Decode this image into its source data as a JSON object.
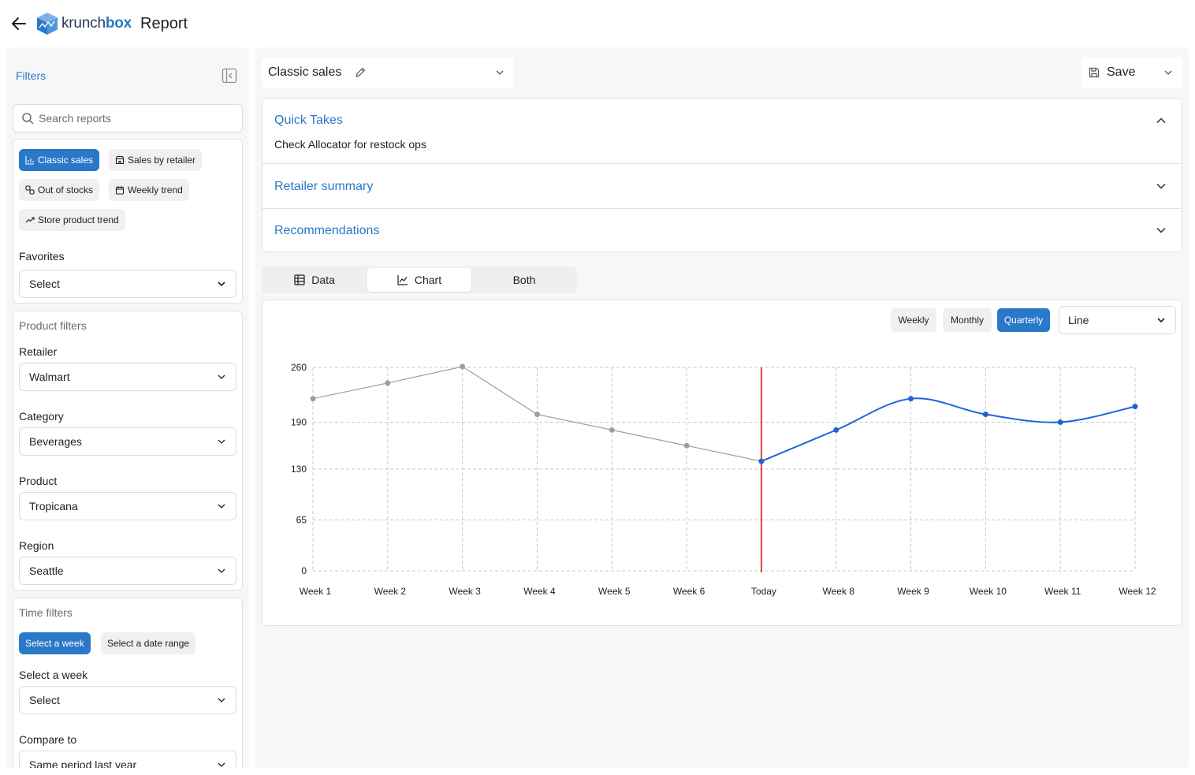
{
  "header": {
    "logo_prefix": "krunch",
    "logo_suffix": "box",
    "page_title": "Report"
  },
  "sidebar": {
    "title": "Filters",
    "search_placeholder": "Search reports",
    "reports": [
      {
        "label": "Classic sales",
        "icon": "bar-chart-icon",
        "active": true
      },
      {
        "label": "Sales by retailer",
        "icon": "store-icon",
        "active": false
      },
      {
        "label": "Out of stocks",
        "icon": "link-icon",
        "active": false
      },
      {
        "label": "Weekly trend",
        "icon": "calendar-icon",
        "active": false
      },
      {
        "label": "Store product trend",
        "icon": "trend-icon",
        "active": false
      }
    ],
    "favorites": {
      "label": "Favorites",
      "value": "Select"
    },
    "product_filters": {
      "title": "Product filters",
      "retailer": {
        "label": "Retailer",
        "value": "Walmart"
      },
      "category": {
        "label": "Category",
        "value": "Beverages"
      },
      "product": {
        "label": "Product",
        "value": "Tropicana"
      },
      "region": {
        "label": "Region",
        "value": "Seattle"
      }
    },
    "time_filters": {
      "title": "Time filters",
      "modes": [
        {
          "label": "Select a week",
          "active": true
        },
        {
          "label": "Select a date range",
          "active": false
        }
      ],
      "week": {
        "label": "Select a week",
        "value": "Select"
      },
      "compare": {
        "label": "Compare to",
        "value": "Same period last year"
      }
    }
  },
  "main": {
    "report_name": "Classic sales",
    "save_label": "Save",
    "sections": [
      {
        "title": "Quick Takes",
        "body": "Check Allocator for restock ops",
        "expanded": true
      },
      {
        "title": "Retailer summary",
        "expanded": false
      },
      {
        "title": "Recommendations",
        "expanded": false
      }
    ],
    "view_tabs": [
      {
        "label": "Data",
        "icon": "table-icon",
        "active": false
      },
      {
        "label": "Chart",
        "icon": "line-chart-icon",
        "active": true
      },
      {
        "label": "Both",
        "active": false
      }
    ],
    "periods": [
      {
        "label": "Weekly",
        "active": false
      },
      {
        "label": "Monthly",
        "active": false
      },
      {
        "label": "Quarterly",
        "active": true
      }
    ],
    "chart_type_select": "Line"
  },
  "colors": {
    "accent": "#2a78c8",
    "history_line": "#9e9e9e",
    "forecast_line": "#2163d6",
    "today_marker": "#e0413c"
  },
  "chart_data": {
    "type": "line",
    "categories": [
      "Week 1",
      "Week 2",
      "Week 3",
      "Week 4",
      "Week 5",
      "Week 6",
      "Today",
      "Week 8",
      "Week 9",
      "Week 10",
      "Week 11",
      "Week 12"
    ],
    "yticks": [
      0,
      65,
      130,
      190,
      260
    ],
    "ylim": [
      0,
      260
    ],
    "grid": true,
    "series": [
      {
        "values": [
          220,
          240,
          261,
          200,
          180,
          160,
          140,
          null,
          null,
          null,
          null,
          null
        ]
      },
      {
        "values": [
          null,
          null,
          null,
          null,
          null,
          null,
          140,
          180,
          220,
          200,
          190,
          210
        ]
      }
    ],
    "marker_category": "Today"
  }
}
